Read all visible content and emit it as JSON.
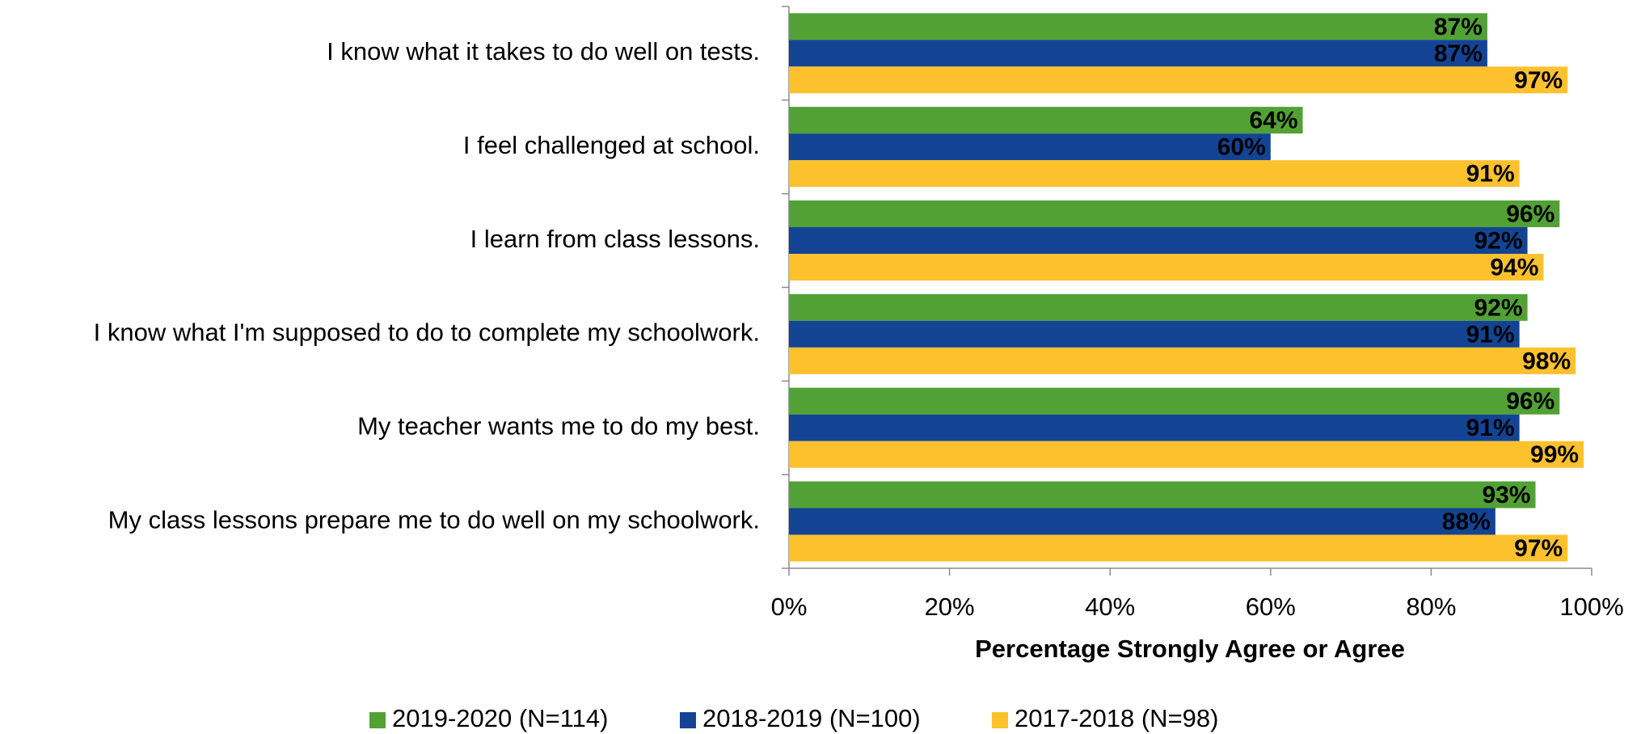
{
  "chart_data": {
    "type": "barh",
    "xlabel": "Percentage Strongly Agree or Agree",
    "categories": [
      "I know what it takes to do well on tests.",
      "I feel challenged at school.",
      "I learn from class lessons.",
      "I know what I'm supposed to do to complete my schoolwork.",
      "My teacher wants me to do my best.",
      "My class lessons prepare me to do well on my schoolwork."
    ],
    "series": [
      {
        "name": "2019-2020 (N=114)",
        "color": "#52a135",
        "label_color": "#ffffff",
        "values": [
          87,
          64,
          96,
          92,
          96,
          93
        ],
        "value_labels": [
          "87%",
          "64%",
          "96%",
          "92%",
          "96%",
          "93%"
        ]
      },
      {
        "name": "2018-2019 (N=100)",
        "color": "#134494",
        "label_color": "#ffffff",
        "values": [
          87,
          60,
          92,
          91,
          91,
          88
        ],
        "value_labels": [
          "87%",
          "60%",
          "92%",
          "91%",
          "91%",
          "88%"
        ]
      },
      {
        "name": "2017-2018 (N=98)",
        "color": "#fdc12e",
        "label_color": "#000000",
        "values": [
          97,
          91,
          94,
          98,
          99,
          97
        ],
        "value_labels": [
          "97%",
          "91%",
          "94%",
          "98%",
          "99%",
          "97%"
        ]
      }
    ],
    "xlim": [
      0,
      100
    ],
    "xticks": [
      {
        "value": 0,
        "label": "0%"
      },
      {
        "value": 20,
        "label": "20%"
      },
      {
        "value": 40,
        "label": "40%"
      },
      {
        "value": 60,
        "label": "60%"
      },
      {
        "value": 80,
        "label": "80%"
      },
      {
        "value": 100,
        "label": "100%"
      }
    ],
    "legend": "bottom"
  }
}
